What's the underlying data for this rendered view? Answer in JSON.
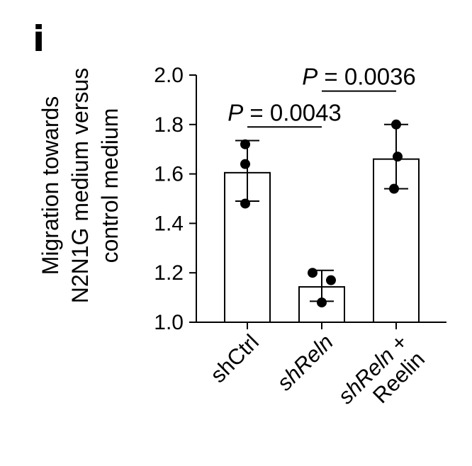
{
  "panel_letter": "i",
  "chart_data": {
    "type": "bar",
    "ylabel_lines": [
      "Migration towards",
      "N2N1G medium versus",
      "control medium"
    ],
    "ylim": [
      1.0,
      2.0
    ],
    "yticks": [
      "1.0",
      "1.2",
      "1.4",
      "1.6",
      "1.8",
      "2.0"
    ],
    "categories": [
      {
        "lines": [
          [
            {
              "t": "shCtrl",
              "i": false
            }
          ]
        ]
      },
      {
        "lines": [
          [
            {
              "t": "shReln",
              "i": true
            }
          ]
        ]
      },
      {
        "lines": [
          [
            {
              "t": "shReln",
              "i": true
            },
            {
              "t": " +",
              "i": false
            }
          ],
          [
            {
              "t": "Reelin",
              "i": false
            }
          ]
        ]
      }
    ],
    "values": [
      1.605,
      1.143,
      1.66
    ],
    "error_low": [
      1.49,
      1.085,
      1.54
    ],
    "error_high": [
      1.735,
      1.21,
      1.8
    ],
    "points": [
      [
        1.72,
        1.64,
        1.48
      ],
      [
        1.2,
        1.17,
        1.08
      ],
      [
        1.8,
        1.67,
        1.54
      ]
    ],
    "comparisons": [
      {
        "from": 0,
        "to": 1,
        "p_symbol": "P",
        "p_rest": " = 0.0043",
        "y": 1.79
      },
      {
        "from": 1,
        "to": 2,
        "p_symbol": "P",
        "p_rest": " = 0.0036",
        "y": 1.935
      }
    ],
    "bar_color": "#ffffff",
    "edge_color": "#000000",
    "grid": false
  }
}
